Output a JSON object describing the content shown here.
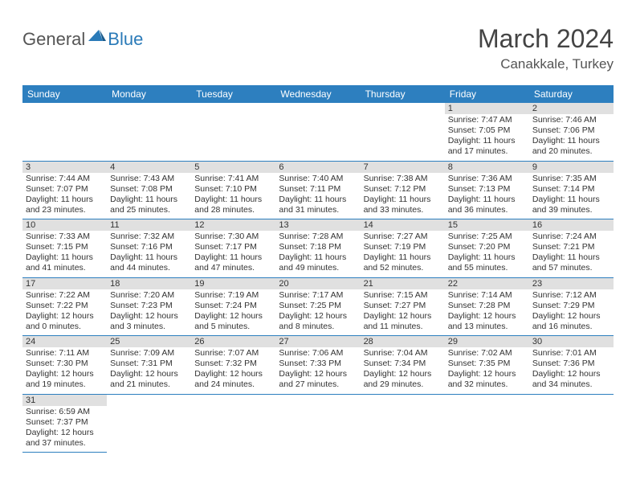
{
  "logo": {
    "part1": "General",
    "part2": "Blue"
  },
  "title": {
    "month": "March 2024",
    "location": "Canakkale, Turkey"
  },
  "colors": {
    "header_bg": "#2d7fbf",
    "header_fg": "#ffffff",
    "numrow_bg": "#e0e0e0",
    "rule": "#2d7fbf"
  },
  "dayNames": [
    "Sunday",
    "Monday",
    "Tuesday",
    "Wednesday",
    "Thursday",
    "Friday",
    "Saturday"
  ],
  "weeks": [
    [
      null,
      null,
      null,
      null,
      null,
      {
        "n": "1",
        "sr": "Sunrise: 7:47 AM",
        "ss": "Sunset: 7:05 PM",
        "d1": "Daylight: 11 hours",
        "d2": "and 17 minutes."
      },
      {
        "n": "2",
        "sr": "Sunrise: 7:46 AM",
        "ss": "Sunset: 7:06 PM",
        "d1": "Daylight: 11 hours",
        "d2": "and 20 minutes."
      }
    ],
    [
      {
        "n": "3",
        "sr": "Sunrise: 7:44 AM",
        "ss": "Sunset: 7:07 PM",
        "d1": "Daylight: 11 hours",
        "d2": "and 23 minutes."
      },
      {
        "n": "4",
        "sr": "Sunrise: 7:43 AM",
        "ss": "Sunset: 7:08 PM",
        "d1": "Daylight: 11 hours",
        "d2": "and 25 minutes."
      },
      {
        "n": "5",
        "sr": "Sunrise: 7:41 AM",
        "ss": "Sunset: 7:10 PM",
        "d1": "Daylight: 11 hours",
        "d2": "and 28 minutes."
      },
      {
        "n": "6",
        "sr": "Sunrise: 7:40 AM",
        "ss": "Sunset: 7:11 PM",
        "d1": "Daylight: 11 hours",
        "d2": "and 31 minutes."
      },
      {
        "n": "7",
        "sr": "Sunrise: 7:38 AM",
        "ss": "Sunset: 7:12 PM",
        "d1": "Daylight: 11 hours",
        "d2": "and 33 minutes."
      },
      {
        "n": "8",
        "sr": "Sunrise: 7:36 AM",
        "ss": "Sunset: 7:13 PM",
        "d1": "Daylight: 11 hours",
        "d2": "and 36 minutes."
      },
      {
        "n": "9",
        "sr": "Sunrise: 7:35 AM",
        "ss": "Sunset: 7:14 PM",
        "d1": "Daylight: 11 hours",
        "d2": "and 39 minutes."
      }
    ],
    [
      {
        "n": "10",
        "sr": "Sunrise: 7:33 AM",
        "ss": "Sunset: 7:15 PM",
        "d1": "Daylight: 11 hours",
        "d2": "and 41 minutes."
      },
      {
        "n": "11",
        "sr": "Sunrise: 7:32 AM",
        "ss": "Sunset: 7:16 PM",
        "d1": "Daylight: 11 hours",
        "d2": "and 44 minutes."
      },
      {
        "n": "12",
        "sr": "Sunrise: 7:30 AM",
        "ss": "Sunset: 7:17 PM",
        "d1": "Daylight: 11 hours",
        "d2": "and 47 minutes."
      },
      {
        "n": "13",
        "sr": "Sunrise: 7:28 AM",
        "ss": "Sunset: 7:18 PM",
        "d1": "Daylight: 11 hours",
        "d2": "and 49 minutes."
      },
      {
        "n": "14",
        "sr": "Sunrise: 7:27 AM",
        "ss": "Sunset: 7:19 PM",
        "d1": "Daylight: 11 hours",
        "d2": "and 52 minutes."
      },
      {
        "n": "15",
        "sr": "Sunrise: 7:25 AM",
        "ss": "Sunset: 7:20 PM",
        "d1": "Daylight: 11 hours",
        "d2": "and 55 minutes."
      },
      {
        "n": "16",
        "sr": "Sunrise: 7:24 AM",
        "ss": "Sunset: 7:21 PM",
        "d1": "Daylight: 11 hours",
        "d2": "and 57 minutes."
      }
    ],
    [
      {
        "n": "17",
        "sr": "Sunrise: 7:22 AM",
        "ss": "Sunset: 7:22 PM",
        "d1": "Daylight: 12 hours",
        "d2": "and 0 minutes."
      },
      {
        "n": "18",
        "sr": "Sunrise: 7:20 AM",
        "ss": "Sunset: 7:23 PM",
        "d1": "Daylight: 12 hours",
        "d2": "and 3 minutes."
      },
      {
        "n": "19",
        "sr": "Sunrise: 7:19 AM",
        "ss": "Sunset: 7:24 PM",
        "d1": "Daylight: 12 hours",
        "d2": "and 5 minutes."
      },
      {
        "n": "20",
        "sr": "Sunrise: 7:17 AM",
        "ss": "Sunset: 7:25 PM",
        "d1": "Daylight: 12 hours",
        "d2": "and 8 minutes."
      },
      {
        "n": "21",
        "sr": "Sunrise: 7:15 AM",
        "ss": "Sunset: 7:27 PM",
        "d1": "Daylight: 12 hours",
        "d2": "and 11 minutes."
      },
      {
        "n": "22",
        "sr": "Sunrise: 7:14 AM",
        "ss": "Sunset: 7:28 PM",
        "d1": "Daylight: 12 hours",
        "d2": "and 13 minutes."
      },
      {
        "n": "23",
        "sr": "Sunrise: 7:12 AM",
        "ss": "Sunset: 7:29 PM",
        "d1": "Daylight: 12 hours",
        "d2": "and 16 minutes."
      }
    ],
    [
      {
        "n": "24",
        "sr": "Sunrise: 7:11 AM",
        "ss": "Sunset: 7:30 PM",
        "d1": "Daylight: 12 hours",
        "d2": "and 19 minutes."
      },
      {
        "n": "25",
        "sr": "Sunrise: 7:09 AM",
        "ss": "Sunset: 7:31 PM",
        "d1": "Daylight: 12 hours",
        "d2": "and 21 minutes."
      },
      {
        "n": "26",
        "sr": "Sunrise: 7:07 AM",
        "ss": "Sunset: 7:32 PM",
        "d1": "Daylight: 12 hours",
        "d2": "and 24 minutes."
      },
      {
        "n": "27",
        "sr": "Sunrise: 7:06 AM",
        "ss": "Sunset: 7:33 PM",
        "d1": "Daylight: 12 hours",
        "d2": "and 27 minutes."
      },
      {
        "n": "28",
        "sr": "Sunrise: 7:04 AM",
        "ss": "Sunset: 7:34 PM",
        "d1": "Daylight: 12 hours",
        "d2": "and 29 minutes."
      },
      {
        "n": "29",
        "sr": "Sunrise: 7:02 AM",
        "ss": "Sunset: 7:35 PM",
        "d1": "Daylight: 12 hours",
        "d2": "and 32 minutes."
      },
      {
        "n": "30",
        "sr": "Sunrise: 7:01 AM",
        "ss": "Sunset: 7:36 PM",
        "d1": "Daylight: 12 hours",
        "d2": "and 34 minutes."
      }
    ],
    [
      {
        "n": "31",
        "sr": "Sunrise: 6:59 AM",
        "ss": "Sunset: 7:37 PM",
        "d1": "Daylight: 12 hours",
        "d2": "and 37 minutes."
      },
      null,
      null,
      null,
      null,
      null,
      null
    ]
  ]
}
